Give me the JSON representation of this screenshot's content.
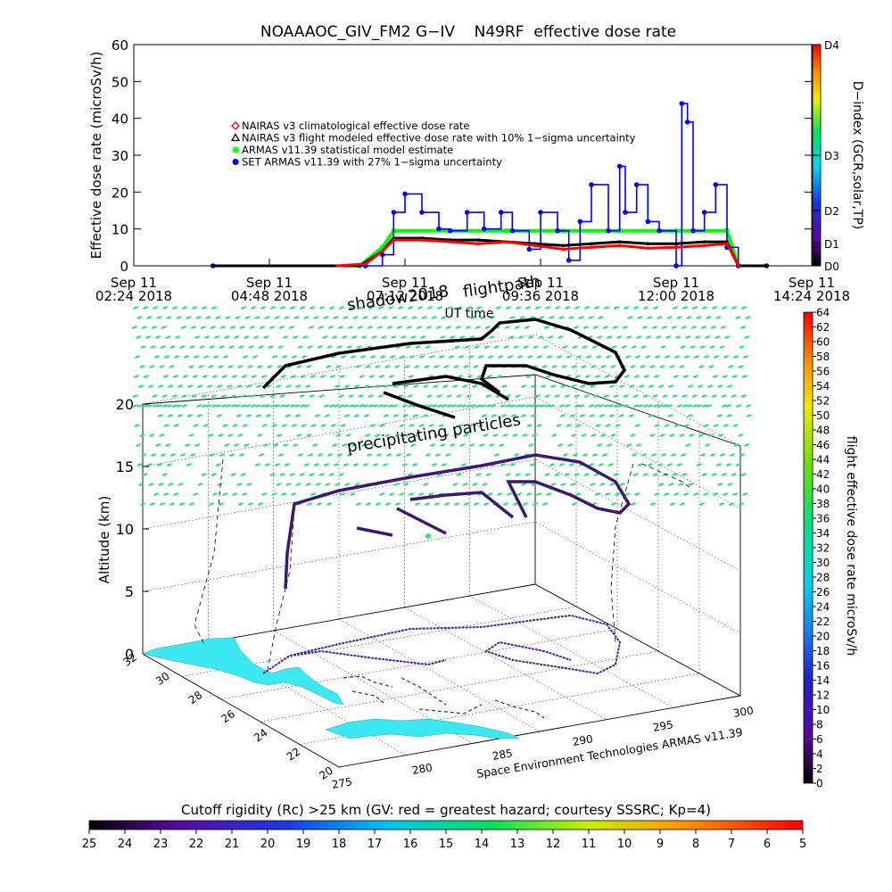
{
  "chart_data": [
    {
      "type": "line",
      "title": "NOAAAOC_GIV_FM2 G−IV    N49RF  effective dose rate",
      "ylabel": "Effective dose rate (microSv/h)",
      "ylim": [
        0,
        60
      ],
      "yticks": [
        0,
        10,
        20,
        30,
        40,
        50,
        60
      ],
      "xlabel": "UT time",
      "xlim": [
        "2018-09-11 02:24",
        "2018-09-11 14:24"
      ],
      "xticks": [
        {
          "t": "2018-09-11 02:24",
          "line1": "Sep 11",
          "line2": "02:24 2018"
        },
        {
          "t": "2018-09-11 04:48",
          "line1": "Sep 11",
          "line2": "04:48 2018"
        },
        {
          "t": "2018-09-11 07:12",
          "line1": "Sep 11",
          "line2": "07:12 2018"
        },
        {
          "t": "2018-09-11 09:36",
          "line1": "Sep 11",
          "line2": "09:36 2018"
        },
        {
          "t": "2018-09-11 12:00",
          "line1": "Sep 11",
          "line2": "12:00 2018"
        },
        {
          "t": "2018-09-11 14:24",
          "line1": "Sep 11",
          "line2": "14:24 2018"
        }
      ],
      "right_axis": {
        "label": "D−index (GCR,solar,TP)",
        "ticks": [
          {
            "label": "D4",
            "v": 60
          },
          {
            "label": "D3",
            "v": 30
          },
          {
            "label": "D2",
            "v": 15
          },
          {
            "label": "D1",
            "v": 6
          },
          {
            "label": "D0",
            "v": 0
          }
        ]
      },
      "legend": {
        "position": "upper-left",
        "entries": [
          {
            "text": "NAIRAS v3 climatological effective dose rate",
            "color": "#ff0000",
            "marker": "diamond"
          },
          {
            "text": "NAIRAS v3 flight modeled effective dose rate with 10% 1−sigma uncertainty",
            "color": "#000000",
            "marker": "triangle"
          },
          {
            "text": "ARMAS v11.39 statistical model estimate",
            "color": "#00ff00",
            "marker": "asterisk"
          },
          {
            "text": "SET ARMAS v11.39 with 27% 1−sigma uncertainty",
            "color": "#0000ff",
            "marker": "circle"
          }
        ]
      },
      "series": [
        {
          "name": "NAIRAS v3 climatological effective dose rate",
          "color": "#ff0000",
          "x": [
            "2018-09-11 06:00",
            "2018-09-11 06:30",
            "2018-09-11 06:48",
            "2018-09-11 07:00",
            "2018-09-11 07:30",
            "2018-09-11 08:00",
            "2018-09-11 08:30",
            "2018-09-11 09:00",
            "2018-09-11 09:30",
            "2018-09-11 10:00",
            "2018-09-11 10:30",
            "2018-09-11 11:00",
            "2018-09-11 11:30",
            "2018-09-11 12:00",
            "2018-09-11 12:30",
            "2018-09-11 12:54",
            "2018-09-11 13:06"
          ],
          "y": [
            0,
            0.5,
            4,
            7,
            7,
            6.5,
            6,
            6.5,
            5.5,
            4.5,
            5,
            5.5,
            4.8,
            5,
            5.5,
            6,
            0
          ]
        },
        {
          "name": "NAIRAS v3 flight modeled effective dose rate with 10% 1−sigma uncertainty",
          "color": "#000000",
          "x": [
            "2018-09-11 03:48",
            "2018-09-11 06:24",
            "2018-09-11 06:48",
            "2018-09-11 07:00",
            "2018-09-11 07:30",
            "2018-09-11 08:00",
            "2018-09-11 08:30",
            "2018-09-11 09:00",
            "2018-09-11 09:30",
            "2018-09-11 10:00",
            "2018-09-11 10:30",
            "2018-09-11 11:00",
            "2018-09-11 11:30",
            "2018-09-11 12:00",
            "2018-09-11 12:30",
            "2018-09-11 12:54",
            "2018-09-11 13:06",
            "2018-09-11 13:36"
          ],
          "y": [
            0,
            0,
            4,
            7.5,
            7.5,
            7,
            7,
            6.5,
            6,
            5.5,
            6,
            6.5,
            6,
            6,
            6.5,
            6.5,
            0,
            0
          ]
        },
        {
          "name": "ARMAS v11.39 statistical model estimate",
          "color": "#00ff00",
          "x": [
            "2018-09-11 06:24",
            "2018-09-11 06:48",
            "2018-09-11 07:00",
            "2018-09-11 08:00",
            "2018-09-11 09:00",
            "2018-09-11 10:00",
            "2018-09-11 11:00",
            "2018-09-11 12:00",
            "2018-09-11 12:54",
            "2018-09-11 13:06"
          ],
          "y": [
            0,
            5,
            9.5,
            9.5,
            9.5,
            9.5,
            9.5,
            9.5,
            9.5,
            0
          ]
        },
        {
          "name": "SET ARMAS v11.39 with 27% 1−sigma uncertainty",
          "color": "#0000ff",
          "x": [
            "2018-09-11 03:48",
            "2018-09-11 06:30",
            "2018-09-11 06:48",
            "2018-09-11 07:00",
            "2018-09-11 07:12",
            "2018-09-11 07:30",
            "2018-09-11 07:48",
            "2018-09-11 08:00",
            "2018-09-11 08:18",
            "2018-09-11 08:36",
            "2018-09-11 08:54",
            "2018-09-11 09:06",
            "2018-09-11 09:24",
            "2018-09-11 09:36",
            "2018-09-11 09:54",
            "2018-09-11 10:06",
            "2018-09-11 10:18",
            "2018-09-11 10:30",
            "2018-09-11 10:48",
            "2018-09-11 11:00",
            "2018-09-11 11:06",
            "2018-09-11 11:18",
            "2018-09-11 11:30",
            "2018-09-11 11:42",
            "2018-09-11 12:00",
            "2018-09-11 12:06",
            "2018-09-11 12:12",
            "2018-09-11 12:18",
            "2018-09-11 12:30",
            "2018-09-11 12:42",
            "2018-09-11 12:54",
            "2018-09-11 13:06",
            "2018-09-11 13:36"
          ],
          "y": [
            0,
            0,
            3,
            14.5,
            19.5,
            14.5,
            10,
            9.5,
            14.5,
            10,
            14.5,
            9.5,
            4.5,
            14.5,
            9.5,
            1.5,
            12,
            22,
            9.5,
            27,
            14.5,
            22,
            12,
            9.5,
            0,
            44,
            39,
            9.5,
            14.5,
            22,
            5,
            0,
            0
          ]
        }
      ]
    },
    {
      "type": "scatter",
      "subtype": "3d-flight-path",
      "zlabel": "Altitude (km)",
      "zticks": [
        0,
        5,
        10,
        15,
        20
      ],
      "yticks": [
        20,
        22,
        24,
        26,
        28,
        30,
        32
      ],
      "xticks": [
        275,
        280,
        285,
        290,
        295,
        300
      ],
      "annotations": [
        "flightpath",
        "shadow2018",
        "precipitating particles",
        "UT time",
        "Space Environment Technologies ARMAS v11.39"
      ],
      "colorbar_right": {
        "label": "flight effective dose rate microSv/h",
        "min": 0,
        "max": 64,
        "ticks": [
          0,
          2,
          4,
          6,
          8,
          10,
          12,
          14,
          16,
          18,
          20,
          22,
          24,
          26,
          28,
          30,
          32,
          34,
          36,
          38,
          40,
          42,
          44,
          46,
          48,
          50,
          52,
          54,
          56,
          58,
          60,
          62,
          64
        ]
      },
      "colorbar_bottom": {
        "label": "Cutoff rigidity (Rc) >25 km (GV: red = greatest hazard; courtesy SSSRC; Kp=4)",
        "ticks": [
          25,
          24,
          23,
          22,
          21,
          20,
          19,
          18,
          17,
          16,
          15,
          14,
          13,
          12,
          11,
          10,
          9,
          8,
          7,
          6,
          5
        ]
      }
    }
  ],
  "colors": {
    "land": "#3ce8f2",
    "precip_particles": "#3ddc84",
    "flight_track": "#000000",
    "track_shadow": "#3a1a6e"
  }
}
